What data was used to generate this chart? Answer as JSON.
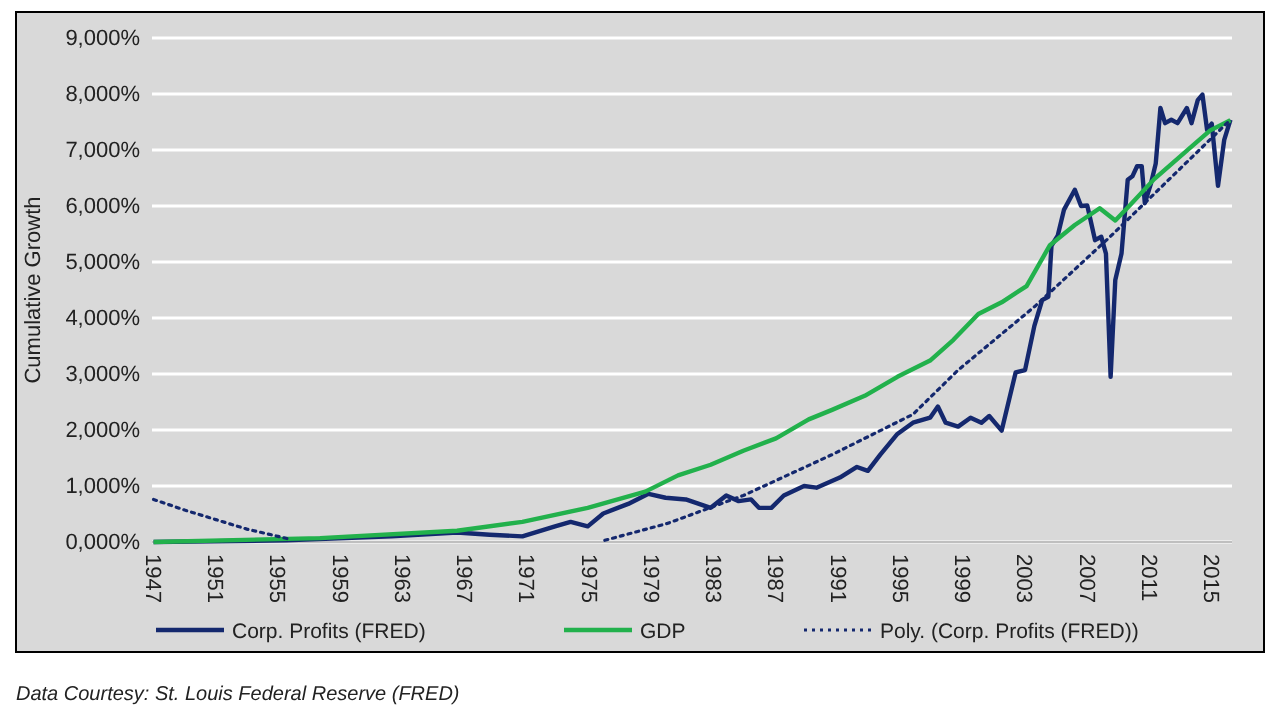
{
  "chart_data": {
    "type": "line",
    "ylabel": "Cumulative Growth",
    "annotations": [
      "Data Courtesy: St. Louis Federal Reserve (FRED)"
    ],
    "xlim": [
      1946.9,
      2016.3
    ],
    "xticks": [
      1947,
      1951,
      1955,
      1959,
      1963,
      1967,
      1971,
      1975,
      1979,
      1983,
      1987,
      1991,
      1995,
      1999,
      2003,
      2007,
      2011,
      2015
    ],
    "ylim": [
      0,
      9000
    ],
    "yticks": [
      {
        "value": 0,
        "label": "0,000%"
      },
      {
        "value": 1000,
        "label": "1,000%"
      },
      {
        "value": 2000,
        "label": "2,000%"
      },
      {
        "value": 3000,
        "label": "3,000%"
      },
      {
        "value": 4000,
        "label": "4,000%"
      },
      {
        "value": 5000,
        "label": "5,000%"
      },
      {
        "value": 6000,
        "label": "6,000%"
      },
      {
        "value": 7000,
        "label": "7,000%"
      },
      {
        "value": 8000,
        "label": "8,000%"
      },
      {
        "value": 9000,
        "label": "9,000%"
      }
    ],
    "grid": "y",
    "legend": "bottom",
    "marker": "none",
    "series": [
      {
        "name": "Corp. Profits (FRED)",
        "color": "#14286e",
        "line_style": "solid",
        "x": [
          1947,
          1955.5,
          1962.3,
          1966.5,
          1968.6,
          1970.7,
          1972.8,
          1973.8,
          1974.9,
          1975.9,
          1977.5,
          1978.8,
          1979.9,
          1981.2,
          1982.8,
          1983.8,
          1984.6,
          1985.4,
          1985.9,
          1986.7,
          1987.5,
          1988.8,
          1989.6,
          1991.1,
          1992.2,
          1992.9,
          1993.7,
          1994.8,
          1995.8,
          1996.9,
          1997.4,
          1997.9,
          1998.7,
          1999.5,
          2000.2,
          2000.7,
          2001.5,
          2002.4,
          2003.0,
          2003.6,
          2004.1,
          2004.5,
          2004.7,
          2005.1,
          2005.5,
          2006.2,
          2006.6,
          2007.0,
          2007.5,
          2007.9,
          2008.2,
          2008.5,
          2008.8,
          2009.2,
          2009.6,
          2009.9,
          2010.2,
          2010.5,
          2010.7,
          2011.1,
          2011.4,
          2011.7,
          2012.0,
          2012.4,
          2012.8,
          2013.4,
          2013.7,
          2014.1,
          2014.4,
          2014.7,
          2015.0,
          2015.4,
          2015.8,
          2016.2
        ],
        "values": [
          0,
          30,
          100,
          170,
          130,
          100,
          280,
          360,
          280,
          510,
          680,
          860,
          790,
          760,
          610,
          830,
          730,
          760,
          610,
          610,
          830,
          1000,
          970,
          1150,
          1340,
          1270,
          1560,
          1930,
          2130,
          2220,
          2420,
          2130,
          2060,
          2220,
          2130,
          2250,
          1990,
          3030,
          3070,
          3860,
          4320,
          4380,
          5290,
          5470,
          5930,
          6290,
          6000,
          6010,
          5390,
          5450,
          5150,
          2950,
          4680,
          5150,
          6470,
          6530,
          6710,
          6710,
          6050,
          6410,
          6760,
          7750,
          7480,
          7540,
          7480,
          7750,
          7480,
          7890,
          7990,
          7360,
          7470,
          6360,
          7180,
          7540
        ]
      },
      {
        "name": "GDP",
        "color": "#22b14c",
        "line_style": "solid",
        "x": [
          1947,
          1957.7,
          1966.5,
          1970.7,
          1974.9,
          1978.6,
          1980.7,
          1982.8,
          1984.9,
          1987.0,
          1989.1,
          1990.6,
          1992.7,
          1994.8,
          1996.9,
          1998.4,
          2000.0,
          2001.5,
          2003.1,
          2004.6,
          2006.2,
          2007.8,
          2008.8,
          2009.8,
          2011.3,
          2013.4,
          2014.9,
          2016.2
        ],
        "values": [
          0,
          70,
          200,
          360,
          610,
          900,
          1190,
          1380,
          1630,
          1850,
          2190,
          2360,
          2610,
          2950,
          3240,
          3610,
          4070,
          4280,
          4570,
          5300,
          5660,
          5960,
          5740,
          6030,
          6480,
          6990,
          7350,
          7530
        ]
      },
      {
        "name": "Poly. (Corp. Profits (FRED))",
        "color": "#14286e",
        "line_style": "dotted",
        "x": [
          1947,
          1949,
          1951,
          1953,
          1955,
          1955.6,
          1966,
          1976,
          1980,
          1984.9,
          1990.6,
          1995.8,
          1998.7,
          2003.6,
          2008.5,
          2016.2
        ],
        "values": [
          760,
          570,
          400,
          230,
          100,
          60,
          null,
          30,
          330,
          830,
          1560,
          2280,
          3070,
          4200,
          5460,
          7540
        ]
      }
    ]
  }
}
